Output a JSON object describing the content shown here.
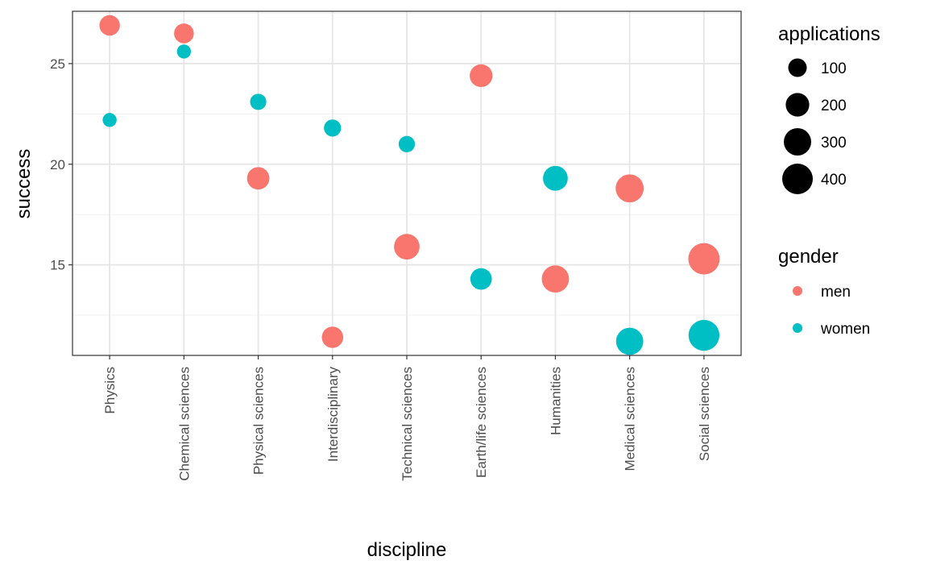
{
  "chart_data": {
    "type": "scatter",
    "xlabel": "discipline",
    "ylabel": "success",
    "categories": [
      "Physics",
      "Chemical sciences",
      "Physical sciences",
      "Interdisciplinary",
      "Technical sciences",
      "Earth/life sciences",
      "Humanities",
      "Medical sciences",
      "Social sciences"
    ],
    "ylim": [
      10.5,
      27.6
    ],
    "yticks": [
      15,
      20,
      25
    ],
    "size_legend": {
      "title": "applications",
      "values": [
        100,
        200,
        300,
        400
      ]
    },
    "color_legend": {
      "title": "gender",
      "entries": [
        {
          "name": "men",
          "color": "#F8766D"
        },
        {
          "name": "women",
          "color": "#00BFC4"
        }
      ]
    },
    "series": [
      {
        "name": "men",
        "color": "#F8766D",
        "points": [
          {
            "x": "Physics",
            "y": 26.9,
            "applications": 135
          },
          {
            "x": "Chemical sciences",
            "y": 26.5,
            "applications": 122
          },
          {
            "x": "Physical sciences",
            "y": 19.3,
            "applications": 174
          },
          {
            "x": "Interdisciplinary",
            "y": 11.4,
            "applications": 153
          },
          {
            "x": "Technical sciences",
            "y": 15.9,
            "applications": 251
          },
          {
            "x": "Earth/life sciences",
            "y": 24.4,
            "applications": 183
          },
          {
            "x": "Humanities",
            "y": 14.3,
            "applications": 296
          },
          {
            "x": "Medical sciences",
            "y": 18.8,
            "applications": 320
          },
          {
            "x": "Social sciences",
            "y": 15.3,
            "applications": 425
          }
        ]
      },
      {
        "name": "women",
        "color": "#00BFC4",
        "points": [
          {
            "x": "Physics",
            "y": 22.2,
            "applications": 39
          },
          {
            "x": "Chemical sciences",
            "y": 25.6,
            "applications": 39
          },
          {
            "x": "Physical sciences",
            "y": 23.1,
            "applications": 65
          },
          {
            "x": "Interdisciplinary",
            "y": 21.8,
            "applications": 78
          },
          {
            "x": "Technical sciences",
            "y": 21.0,
            "applications": 67
          },
          {
            "x": "Earth/life sciences",
            "y": 14.3,
            "applications": 156
          },
          {
            "x": "Humanities",
            "y": 19.3,
            "applications": 230
          },
          {
            "x": "Medical sciences",
            "y": 11.2,
            "applications": 296
          },
          {
            "x": "Social sciences",
            "y": 11.5,
            "applications": 409
          }
        ]
      }
    ]
  }
}
